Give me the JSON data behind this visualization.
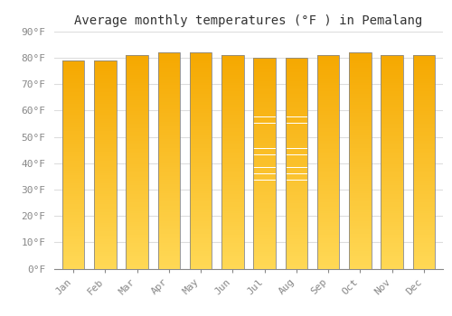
{
  "title": "Average monthly temperatures (°F ) in Pemalang",
  "months": [
    "Jan",
    "Feb",
    "Mar",
    "Apr",
    "May",
    "Jun",
    "Jul",
    "Aug",
    "Sep",
    "Oct",
    "Nov",
    "Dec"
  ],
  "values": [
    79.0,
    79.0,
    81.0,
    82.0,
    82.0,
    81.0,
    80.0,
    80.0,
    81.0,
    82.0,
    81.0,
    81.0
  ],
  "bar_color_top": "#F5A800",
  "bar_color_bottom": "#FFD855",
  "bar_edge_color": "#888888",
  "background_color": "#FFFFFF",
  "grid_color": "#DDDDDD",
  "ylim": [
    0,
    90
  ],
  "ytick_step": 10,
  "title_fontsize": 10,
  "tick_fontsize": 8,
  "title_font": "monospace",
  "tick_font": "monospace",
  "tick_color": "#888888",
  "bar_width": 0.7
}
